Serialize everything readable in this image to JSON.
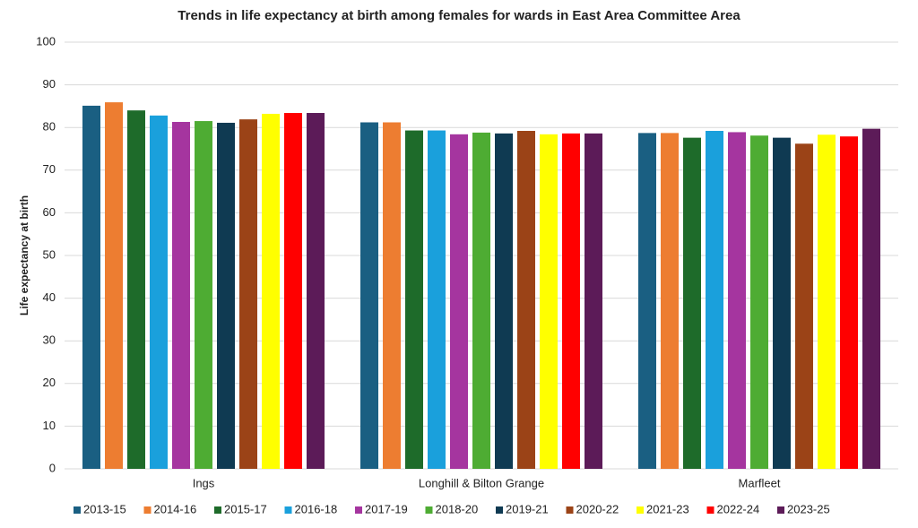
{
  "chart_data": {
    "type": "bar",
    "title": "Trends in life expectancy at birth among females for wards in East Area Committee Area",
    "y_label": "Life expectancy at birth",
    "categories": [
      "Ings",
      "Longhill & Bilton Grange",
      "Marfleet"
    ],
    "series": [
      {
        "name": "2013-15",
        "color": "#1a5f82",
        "values": [
          85.1,
          81.2,
          78.7
        ]
      },
      {
        "name": "2014-16",
        "color": "#ed7d31",
        "values": [
          85.9,
          81.2,
          78.7
        ]
      },
      {
        "name": "2015-17",
        "color": "#1e6b2a",
        "values": [
          84.0,
          79.3,
          77.6
        ]
      },
      {
        "name": "2016-18",
        "color": "#1aa0dc",
        "values": [
          82.8,
          79.3,
          79.2
        ]
      },
      {
        "name": "2017-19",
        "color": "#a5359f",
        "values": [
          81.3,
          78.4,
          78.9
        ]
      },
      {
        "name": "2018-20",
        "color": "#4eac33",
        "values": [
          81.5,
          78.8,
          78.1
        ]
      },
      {
        "name": "2019-21",
        "color": "#0f3a52",
        "values": [
          81.1,
          78.6,
          77.6
        ]
      },
      {
        "name": "2020-22",
        "color": "#9b4317",
        "values": [
          81.9,
          79.2,
          76.2
        ]
      },
      {
        "name": "2021-23",
        "color": "#ffff00",
        "values": [
          83.2,
          78.4,
          78.3
        ]
      },
      {
        "name": "2022-24",
        "color": "#ff0000",
        "values": [
          83.4,
          78.6,
          77.9
        ]
      },
      {
        "name": "2023-25",
        "color": "#5c1b58",
        "values": [
          83.4,
          78.6,
          79.7
        ]
      }
    ],
    "ylim": [
      0,
      100
    ],
    "yticks": [
      0,
      10,
      20,
      30,
      40,
      50,
      60,
      70,
      80,
      90,
      100
    ],
    "grid": true,
    "legend": "bottom"
  }
}
